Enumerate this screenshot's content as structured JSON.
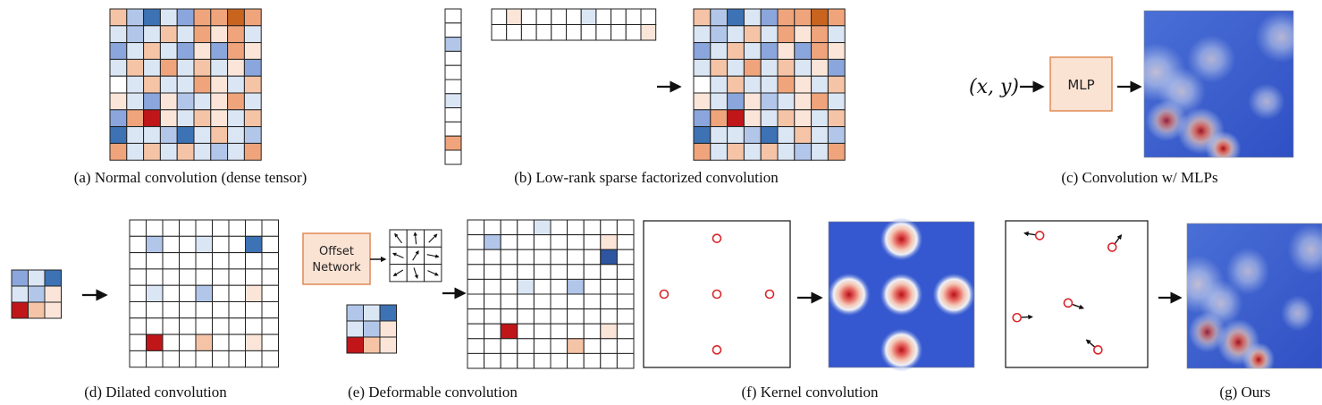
{
  "captions": {
    "a": "(a) Normal convolution (dense tensor)",
    "b": "(b) Low-rank sparse factorized convolution",
    "c": "(c) Convolution w/ MLPs",
    "d": "(d) Dilated convolution",
    "e": "(e) Deformable convolution",
    "f": "(f) Kernel convolution",
    "g": "(g) Ours"
  },
  "labels": {
    "mlp": "MLP",
    "xy_input": "(x, y)",
    "offset_line1": "Offset",
    "offset_line2": "Network"
  },
  "colors": {
    "grid_line": "#222222",
    "box_fill": "#fbe3d4",
    "box_stroke": "#e08a55",
    "point": "#d8262b",
    "heat_bg": "#3b5ed1"
  },
  "palette": {
    "W": "#ffffff",
    "b1": "#dbe6f5",
    "b2": "#b2c6ea",
    "b3": "#8aa6dc",
    "B": "#3d72b5",
    "DB": "#2e55a0",
    "p1": "#fbe5d9",
    "p2": "#f5c4a6",
    "O": "#f0a47b",
    "D": "#c9641f",
    "R": "#c0161a"
  },
  "dense_tensor": [
    "p2 b2 B b1 b3 O O D O",
    "b1 b2 b1 p2 b1 O p1 O b1",
    "b3 b1 p2 b1 b3 p1 b3 O p1",
    "b1 p2 b1 O b1 p2 b1 p1 b3",
    "W b1 p2 b1 b1 O p1 b1 p2",
    "p1 b1 b3 p1 b2 b1 p1 O b1",
    "b3 O R p1 b1 p2 p1 b1 p2",
    "B b1 b1 b2 B b1 p2 b1 b2",
    "O b1 p2 b1 p2 b1 b2 b1 O"
  ],
  "factor_column": [
    "W",
    "W",
    "b2",
    "W",
    "W",
    "W",
    "b1",
    "W",
    "W",
    "O",
    "W"
  ],
  "factor_row": [
    "W p1 W W W W b1 W W W W",
    "W W W W W W W W W W p1"
  ],
  "dilated_kernel": [
    "b3 b1 B",
    "b1 b2 p1",
    "R p2 p1"
  ],
  "dilated_grid": [
    "W W W W W W W W W",
    "W b2 W W b1 W W B W",
    "W W W W W W W W W",
    "W W W W W W W W W",
    "W b1 W W b2 W W p1 W",
    "W W W W W W W W W",
    "W W W W W W W W W",
    "W R W W p2 W W p1 W",
    "W W W W W W W W W"
  ],
  "deform_kernel": [
    "b2 b1 B",
    "b1 b2 p1",
    "R p2 p1"
  ],
  "deform_grid": [
    "W W W W b1 W W W W W",
    "W b2 W W W W W W p1 W",
    "W W W W W W W W DB W",
    "W W W W W W W W W W",
    "W W W b1 W W b2 W W W",
    "W W W W W W W W W W",
    "W W W W W W W W W W",
    "W W R W W W W W p1 W",
    "W W W W W W p2 W W W",
    "W W W W W W W W W W"
  ],
  "offset_arrows": [
    [
      -0.6,
      -0.8
    ],
    [
      -0.1,
      -1.0
    ],
    [
      0.7,
      -0.7
    ],
    [
      -0.9,
      -0.4
    ],
    [
      0.5,
      -0.8
    ],
    [
      1.0,
      0.2
    ],
    [
      -0.8,
      0.5
    ],
    [
      0.3,
      0.9
    ],
    [
      0.9,
      0.4
    ]
  ],
  "kernel_points": [
    [
      0.5,
      0.12
    ],
    [
      0.14,
      0.5
    ],
    [
      0.5,
      0.5
    ],
    [
      0.86,
      0.5
    ],
    [
      0.5,
      0.88
    ]
  ],
  "ours_points": [
    {
      "p": [
        0.24,
        0.1
      ],
      "d": [
        -1.0,
        -0.15
      ]
    },
    {
      "p": [
        0.75,
        0.18
      ],
      "d": [
        0.6,
        -0.8
      ]
    },
    {
      "p": [
        0.44,
        0.56
      ],
      "d": [
        1.0,
        0.35
      ]
    },
    {
      "p": [
        0.08,
        0.66
      ],
      "d": [
        1.0,
        -0.05
      ]
    },
    {
      "p": [
        0.65,
        0.88
      ],
      "d": [
        -0.75,
        -0.65
      ]
    }
  ],
  "heatmap_blobs": [
    {
      "c": [
        0.08,
        0.42
      ],
      "r": 0.16,
      "v": 0.45
    },
    {
      "c": [
        0.45,
        0.33
      ],
      "r": 0.13,
      "v": 0.3
    },
    {
      "c": [
        0.25,
        0.55
      ],
      "r": 0.13,
      "v": 0.4
    },
    {
      "c": [
        0.15,
        0.75
      ],
      "r": 0.14,
      "v": 0.55
    },
    {
      "c": [
        0.38,
        0.82
      ],
      "r": 0.16,
      "v": 0.85
    },
    {
      "c": [
        0.53,
        0.94
      ],
      "r": 0.12,
      "v": 1.0
    },
    {
      "c": [
        0.92,
        0.18
      ],
      "r": 0.14,
      "v": 0.35
    },
    {
      "c": [
        0.82,
        0.62
      ],
      "r": 0.1,
      "v": 0.3
    }
  ]
}
